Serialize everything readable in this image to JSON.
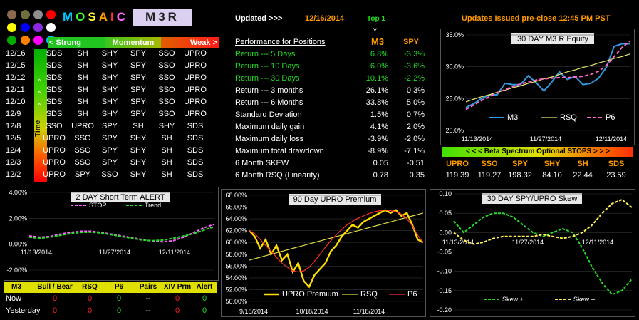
{
  "header": {
    "logo_text": "MOSAIC",
    "system_name": "M3R",
    "updated_label": "Updated >>>",
    "updated_date": "12/16/2014",
    "top_label": "Top 1",
    "top_caret": "^",
    "issued": "Updates Issued pre-close  12:45 PM PST"
  },
  "logo_dots": [
    "#8B6A4F",
    "#6F6F3F",
    "#8F8F8F",
    "#FF0000",
    "#FFFF00",
    "#0000FF",
    "#8A2BE2",
    "#FFFFFF",
    "#00AA00",
    "#FF7F00",
    "#FF00FF",
    "#00BFFF"
  ],
  "momentum": {
    "strong": "< Strong",
    "momentum": "Momentum",
    "weak": "Weak >"
  },
  "time_label": "Time",
  "time_caret": "^",
  "positions": [
    {
      "date": "12/16",
      "cols": [
        "SDS",
        "SH",
        "SHY",
        "SPY",
        "SSO",
        "UPRO"
      ]
    },
    {
      "date": "12/15",
      "cols": [
        "SDS",
        "SH",
        "SHY",
        "SPY",
        "SSO",
        "UPRO"
      ]
    },
    {
      "date": "12/12",
      "cols": [
        "SDS",
        "SH",
        "SHY",
        "SPY",
        "SSO",
        "UPRO"
      ]
    },
    {
      "date": "12/11",
      "cols": [
        "SDS",
        "SH",
        "SHY",
        "SPY",
        "SSO",
        "UPRO"
      ]
    },
    {
      "date": "12/10",
      "cols": [
        "SDS",
        "SH",
        "SHY",
        "SPY",
        "SSO",
        "UPRO"
      ]
    },
    {
      "date": "12/9",
      "cols": [
        "SDS",
        "SH",
        "SHY",
        "SPY",
        "SSO",
        "UPRO"
      ]
    },
    {
      "date": "12/8",
      "cols": [
        "SSO",
        "UPRO",
        "SPY",
        "SH",
        "SHY",
        "SDS"
      ]
    },
    {
      "date": "12/5",
      "cols": [
        "UPRO",
        "SSO",
        "SPY",
        "SHY",
        "SH",
        "SDS"
      ]
    },
    {
      "date": "12/4",
      "cols": [
        "UPRO",
        "SSO",
        "SPY",
        "SHY",
        "SH",
        "SDS"
      ]
    },
    {
      "date": "12/3",
      "cols": [
        "UPRO",
        "SSO",
        "SPY",
        "SHY",
        "SH",
        "SDS"
      ]
    },
    {
      "date": "12/2",
      "cols": [
        "UPRO",
        "SPY",
        "SSO",
        "SHY",
        "SH",
        "SDS"
      ]
    }
  ],
  "performance": {
    "heading": "Performance for Positions",
    "m3_head": "M3",
    "spy_head": "SPY",
    "rows": [
      {
        "label": "Return --- 5 Days",
        "m3": "6.8%",
        "spy": "-3.3%",
        "color": "#22dd22"
      },
      {
        "label": "Return --- 10 Days",
        "m3": "6.0%",
        "spy": "-3.6%",
        "color": "#22dd22"
      },
      {
        "label": "Return --- 30 Days",
        "m3": "10.1%",
        "spy": "-2.2%",
        "color": "#22dd22"
      },
      {
        "label": "Return --- 3 months",
        "m3": "26.1%",
        "spy": "0.3%",
        "color": "#ffffff"
      },
      {
        "label": "Return --- 6 Months",
        "m3": "33.8%",
        "spy": "5.0%",
        "color": "#ffffff"
      },
      {
        "label": "Standard Deviation",
        "m3": "1.5%",
        "spy": "0.7%",
        "color": "#ffffff"
      },
      {
        "label": "Maximum daily gain",
        "m3": "4.1%",
        "spy": "2.0%",
        "color": "#ffffff"
      },
      {
        "label": "Maximum daily loss",
        "m3": "-3.9%",
        "spy": "-2.0%",
        "color": "#ffffff"
      },
      {
        "label": "Maximum total drawdown",
        "m3": "-8.9%",
        "spy": "-7.1%",
        "color": "#ffffff"
      },
      {
        "label": "6 Month SKEW",
        "m3": "0.05",
        "spy": "-0.51",
        "color": "#ffffff"
      },
      {
        "label": "6 Month RSQ  (Linearity)",
        "m3": "0.78",
        "spy": "0.35",
        "color": "#ffffff"
      }
    ]
  },
  "beta": {
    "bar_label": "< < <  Beta Spectrum Optional  STOPS > > >",
    "tickers": [
      "UPRO",
      "SSO",
      "SPY",
      "SHY",
      "SH",
      "SDS"
    ],
    "values": [
      "119.39",
      "119.27",
      "198.32",
      "84.10",
      "22.44",
      "23.59"
    ]
  },
  "signals": {
    "headers": [
      "M3",
      "Bull / Bear",
      "RSQ",
      "P6",
      "Pairs",
      "XIV Prm",
      "Alert"
    ],
    "rows": [
      {
        "label": "Now",
        "vals": [
          "0",
          "0",
          "0",
          "--",
          "0",
          "0"
        ]
      },
      {
        "label": "Yesterday",
        "vals": [
          "0",
          "0",
          "0",
          "--",
          "0",
          "0"
        ]
      }
    ],
    "colors": [
      "#ff2020",
      "#ff2020",
      "#22dd22",
      "#ffffff",
      "#ff2020",
      "#22dd22"
    ]
  },
  "chart_data": [
    {
      "type": "line",
      "title": "30 DAY  M3  R Equity",
      "y_ticks": [
        "35.0%",
        "30.0%",
        "25.0%",
        "20.0%"
      ],
      "ylim": [
        20,
        35
      ],
      "x_ticks": [
        "11/13/2014",
        "11/27/2014",
        "12/11/2014"
      ],
      "legend": [
        "M3",
        "RSQ",
        "P6"
      ],
      "series": [
        {
          "name": "M3",
          "color": "#3399dd",
          "values": [
            23.6,
            24.2,
            25.0,
            25.6,
            25.6,
            27.4,
            27.2,
            27.2,
            28.6,
            27.5,
            26.2,
            27.6,
            29.2,
            28.0,
            28.5,
            27.2,
            27.4,
            28.2,
            29.9,
            33.2,
            33.6,
            33.6
          ]
        },
        {
          "name": "RSQ",
          "color": "#e8e870",
          "values": [
            24.5,
            24.9,
            25.3,
            25.6,
            26.0,
            26.3,
            26.7,
            27.0,
            27.4,
            27.7,
            28.1,
            28.4,
            28.8,
            29.2,
            29.5,
            29.9,
            30.2,
            30.6,
            30.9,
            31.3,
            31.6,
            32.0
          ]
        },
        {
          "name": "P6",
          "color": "#ff66cc",
          "values": [
            23.3,
            24.0,
            24.7,
            25.3,
            25.9,
            26.4,
            26.9,
            27.3,
            27.6,
            27.9,
            28.1,
            28.2,
            28.3,
            28.3,
            28.4,
            28.5,
            28.8,
            29.3,
            30.2,
            31.6,
            33.0,
            34.0
          ]
        }
      ]
    },
    {
      "type": "line",
      "title": "2 DAY Short  Term  ALERT",
      "y_ticks": [
        "4.00%",
        "2.00%",
        "0.00%",
        "-2.00%"
      ],
      "ylim": [
        -2.6,
        4
      ],
      "x_ticks": [
        "11/13/2014",
        "11/27/2014",
        "12/11/2014"
      ],
      "legend": [
        "STOP",
        "Trend"
      ],
      "series": [
        {
          "name": "STOP",
          "color": "#ff66ff",
          "values": [
            0.3,
            0.2,
            0.25,
            0.45,
            0.6,
            0.7,
            0.7,
            0.6,
            0.45,
            0.3,
            0.15,
            0.0,
            -0.15,
            -0.2,
            -0.1,
            0.2,
            0.6,
            1.0,
            1.3
          ]
        },
        {
          "name": "Trend",
          "color": "#22dd22",
          "values": [
            0.2,
            0.1,
            0.2,
            0.35,
            0.5,
            0.6,
            0.62,
            0.55,
            0.4,
            0.25,
            0.1,
            -0.05,
            -0.1,
            -0.05,
            0.1,
            0.3,
            0.5,
            0.8,
            1.1
          ]
        }
      ]
    },
    {
      "type": "line",
      "title": "90 Day UPRO Premium",
      "y_ticks": [
        "68.00%",
        "66.00%",
        "64.00%",
        "62.00%",
        "60.00%",
        "58.00%",
        "56.00%",
        "54.00%",
        "52.00%",
        "50.00%"
      ],
      "ylim": [
        50,
        68
      ],
      "x_ticks": [
        "9/18/2014",
        "10/18/2014",
        "11/18/2014"
      ],
      "legend": [
        "UPRO Premium",
        "RSQ",
        "P6"
      ],
      "series": [
        {
          "name": "UPRO Premium",
          "color": "#ffdd00",
          "values": [
            62.0,
            61.0,
            59.0,
            60.5,
            58.0,
            59.5,
            57.0,
            58.0,
            55.0,
            56.5,
            53.5,
            52.5,
            54.5,
            55.5,
            56.5,
            58.5,
            59.5,
            61.0,
            62.0,
            63.0,
            62.5,
            63.5,
            64.0,
            64.5,
            65.0,
            65.5,
            65.0,
            65.5,
            64.5,
            65.0,
            63.0,
            60.5,
            60.0
          ]
        },
        {
          "name": "RSQ",
          "color": "#dddd44",
          "values": [
            57.0,
            57.25,
            57.5,
            57.75,
            58.0,
            58.25,
            58.5,
            58.75,
            59.0,
            59.25,
            59.5,
            59.75,
            60.0,
            60.25,
            60.5,
            60.75,
            61.0,
            61.25,
            61.5,
            61.75,
            62.0,
            62.25,
            62.5,
            62.75,
            63.0,
            63.25,
            63.5,
            63.75,
            64.0,
            64.25,
            64.5,
            64.75,
            65.0
          ]
        },
        {
          "name": "P6",
          "color": "#ff3030",
          "values": [
            62.0,
            61.5,
            60.5,
            59.5,
            58.5,
            57.5,
            56.5,
            55.8,
            55.2,
            55.0,
            55.2,
            55.8,
            56.8,
            58.0,
            59.2,
            60.3,
            61.3,
            62.2,
            63.0,
            63.6,
            64.1,
            64.5,
            64.9,
            65.2,
            65.4,
            65.5,
            65.4,
            65.2,
            64.8,
            64.0,
            62.8,
            61.2,
            60.0
          ]
        }
      ]
    },
    {
      "type": "line",
      "title": "30 DAY SPY/UPRO  Skew",
      "y_ticks": [
        "0.10",
        "0.05",
        "0.00",
        "-0.05",
        "-0.10",
        "-0.15",
        "-0.20"
      ],
      "ylim": [
        -0.2,
        0.1
      ],
      "x_ticks": [
        "11/13/2014",
        "11/27/2014",
        "12/11/2014"
      ],
      "legend": [
        "Skew +",
        "Skew --"
      ],
      "series": [
        {
          "name": "Skew +",
          "color": "#22dd22",
          "values": [
            0.03,
            0.0,
            0.02,
            0.04,
            0.05,
            0.05,
            0.04,
            0.02,
            0.0,
            -0.01,
            0.0,
            0.01,
            0.0,
            -0.04,
            -0.09,
            -0.13,
            -0.16,
            -0.15,
            -0.12
          ]
        },
        {
          "name": "Skew --",
          "color": "#ffee55",
          "values": [
            0.0,
            -0.02,
            -0.03,
            -0.025,
            -0.015,
            -0.01,
            -0.01,
            -0.01,
            -0.01,
            -0.005,
            -0.01,
            -0.015,
            -0.01,
            0.0,
            0.02,
            0.05,
            0.075,
            0.085,
            0.065
          ]
        }
      ]
    }
  ]
}
